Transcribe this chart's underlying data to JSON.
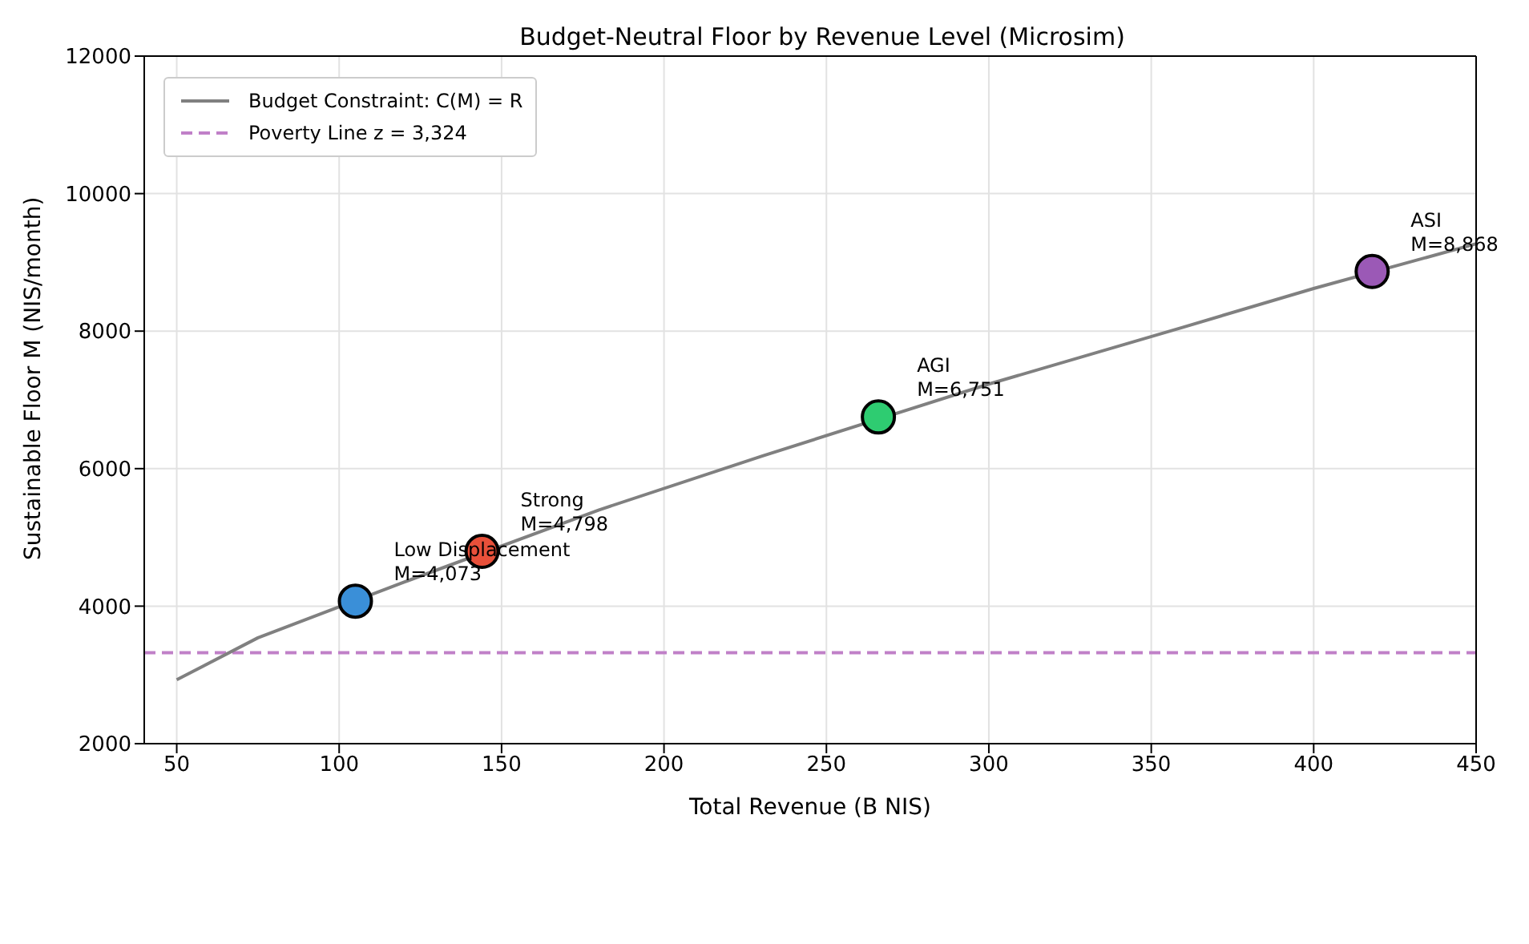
{
  "chart_data": {
    "type": "scatter",
    "title": "Budget-Neutral Floor by Revenue Level (Microsim)",
    "xlabel": "Total Revenue (B NIS)",
    "ylabel": "Sustainable Floor M (NIS/month)",
    "xlim": [
      40,
      450
    ],
    "xticks": [
      50,
      100,
      150,
      200,
      250,
      300,
      350,
      400,
      450
    ],
    "ylim": [
      2000,
      12000
    ],
    "yticks": [
      2000,
      4000,
      6000,
      8000,
      10000,
      12000
    ],
    "grid": true,
    "legend": "top left",
    "series": [
      {
        "name": "Budget Constraint: C(M) = R",
        "type": "line",
        "color": "#808080",
        "line_style": "solid",
        "marker": "none",
        "x": [
          50,
          75,
          120,
          180,
          230,
          300,
          360,
          400,
          450
        ],
        "values": [
          2930,
          3540,
          4350,
          5400,
          6180,
          7230,
          8060,
          8620,
          9270
        ]
      },
      {
        "marker": "circle",
        "x": [
          105,
          144,
          266,
          418
        ],
        "values": [
          4073,
          4798,
          6751,
          8868
        ],
        "colors": [
          "#3a8fd8",
          "#e8503a",
          "#2ecc71",
          "#9b59b6"
        ]
      }
    ],
    "ref_lines": [
      {
        "axis": "y",
        "value": 3324,
        "label": "Poverty Line z = 3,324",
        "color": "#c080c8",
        "line_style": "dashed"
      }
    ],
    "annotations": [
      {
        "text": "Low Displacement\nM=4,073",
        "x": 105,
        "y": 4073
      },
      {
        "text": "Strong\nM=4,798",
        "x": 144,
        "y": 4798
      },
      {
        "text": "AGI\nM=6,751",
        "x": 266,
        "y": 6751
      },
      {
        "text": "ASI\nM=8,868",
        "x": 418,
        "y": 8868
      }
    ]
  }
}
